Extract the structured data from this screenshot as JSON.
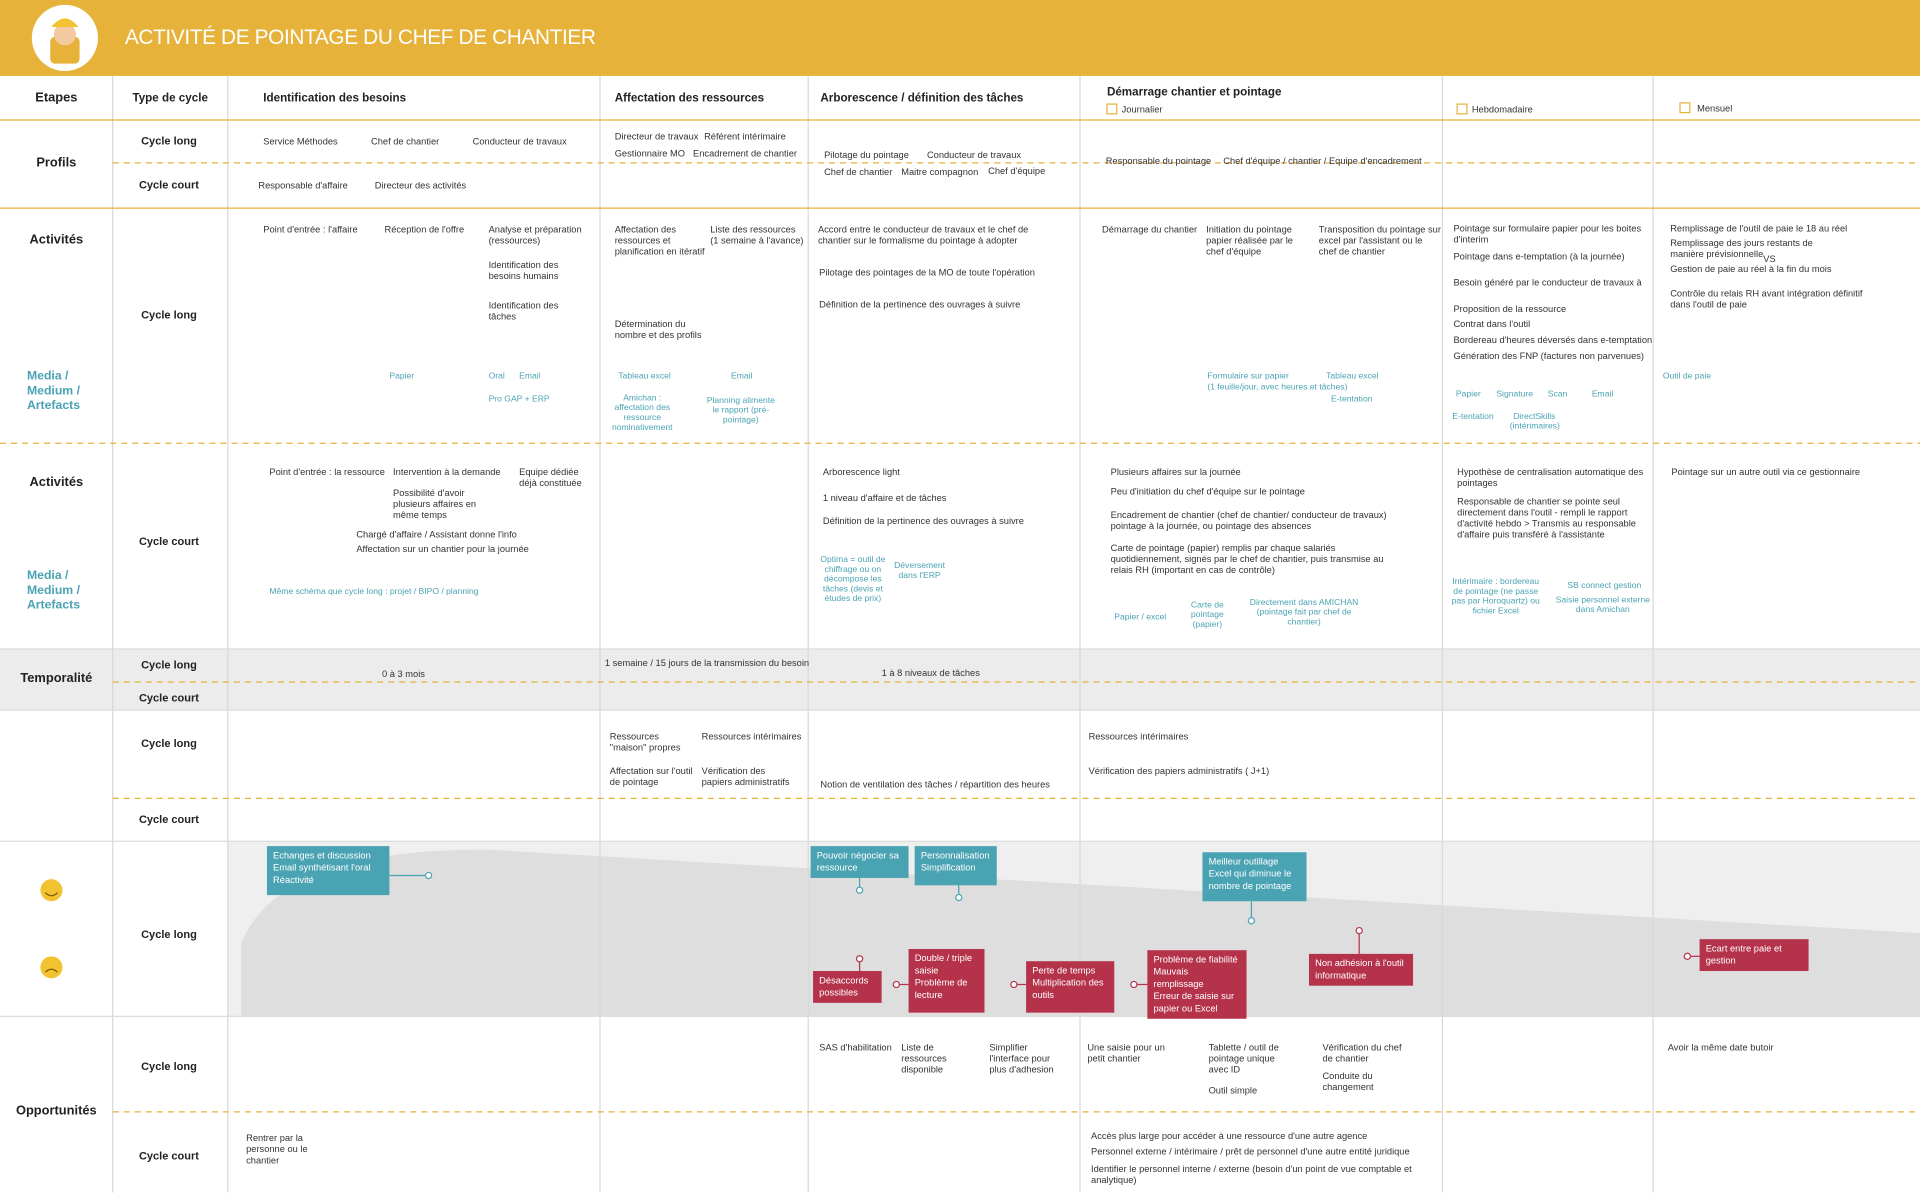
{
  "header": {
    "title": "ACTIVITÉ DE POINTAGE DU CHEF DE CHANTIER"
  },
  "columns": {
    "etapes": "Etapes",
    "type_cycle": "Type de cycle",
    "phases": [
      "Identification des besoins",
      "Affectation des ressources",
      "Arborescence / définition des tâches",
      "Démarrage chantier et pointage"
    ],
    "frequencies": [
      "Journalier",
      "Hebdomadaire",
      "Mensuel"
    ]
  },
  "row_labels": [
    "Profils",
    "Activités",
    "Media / Medium / Artefacts",
    "Activités",
    "Media / Medium / Artefacts",
    "Temporalité",
    "Opportunités"
  ],
  "cycle_labels": [
    "Cycle long",
    "Cycle court",
    "Cycle long",
    "Cycle court",
    "Cycle long",
    "Cycle court",
    "Cycle long",
    "Cycle court",
    "Cycle long",
    "Cycle long",
    "Cycle court"
  ],
  "notes": {
    "profils": [
      "Service Méthodes",
      "Chef de chantier",
      "Conducteur de travaux",
      "Directeur de travaux",
      "Référent intérimaire",
      "Gestionnaire MO",
      "Encadrement de chantier",
      "Pilotage du pointage",
      "Conducteur de travaux",
      "Chef de chantier",
      "Maitre compagnon",
      "Chef d'équipe",
      "Responsable du pointage",
      "Chef d'équipe / chantier / Equipe d'encadrement",
      "Responsable d'affaire",
      "Directeur des activités"
    ],
    "activites_long": [
      "Point d'entrée : l'affaire",
      "Réception de l'offre",
      "Analyse et préparation (ressources)",
      "Identification des besoins humains",
      "Identification des tâches",
      "Affectation des ressources et planification en itératif",
      "Liste des ressources (1 semaine à l'avance)",
      "Détermination du nombre et des profils",
      "Accord entre le conducteur de travaux et le chef de chantier sur le formalisme du pointage à adopter",
      "Pilotage des pointages de la MO de toute l'opération",
      "Définition de la pertinence des ouvrages à suivre",
      "Démarrage du chantier",
      "Initiation du pointage papier réalisée par le chef d'équipe",
      "Transposition du pointage sur excel par l'assistant ou le chef de chantier",
      "Pointage sur formulaire papier pour les boites d'interim",
      "Pointage dans e-temptation (à la journée)",
      "Besoin généré par le conducteur de travaux à",
      "Proposition de la ressource",
      "Contrat dans l'outil",
      "Bordereau d'heures déversés dans e-temptation",
      "Génération des FNP (factures non parvenues)",
      "Remplissage de l'outil de paie le 18 au réel",
      "Remplissage des jours restants de manière prévisionnelle",
      "VS",
      "Gestion de paie au réel à la fin du mois",
      "Contrôle du relais RH avant intégration définitif dans l'outil de paie"
    ],
    "media_long": [
      "Papier",
      "Oral",
      "Email",
      "Pro GAP + ERP",
      "Tableau excel",
      "Email",
      "Amichan : affectation des ressource nominativement",
      "Planning alimente le rapport (pré-pointage)",
      "Formulaire sur papier",
      "(1 feuille/jour, avec heures et tâches)",
      "Tableau excel",
      "E-tentation",
      "Papier",
      "Signature",
      "Scan",
      "Email",
      "E-tentation",
      "DirectSkills (intérimaires)",
      "Outil de paie"
    ],
    "activites_court": [
      "Point d'entrée : la ressource",
      "Intervention à la demande",
      "Equipe dédiée déjà constituée",
      "Possibilité d'avoir plusieurs affaires en même temps",
      "Chargé d'affaire / Assistant donne l'info",
      "Affectation sur un chantier pour la journée",
      "Arborescence light",
      "1  niveau d'affaire et de tâches",
      "Définition de la pertinence des ouvrages à suivre",
      "Plusieurs affaires sur la journée",
      "Peu d'initiation du chef d'équipe sur le pointage",
      "Encadrement de chantier (chef de chantier/ conducteur de travaux) pointage à la journée, ou pointage des absences",
      "Carte de pointage (papier) remplis par chaque salariés quotidiennement, signés par le chef de chantier, puis transmise au relais RH (important en cas de contrôle)",
      "Hypothèse de centralisation automatique des pointages",
      "Responsable de chantier se pointe seul directement dans l'outil - rempli le rapport d'activité hebdo > Transmis au responsable d'affaire puis transféré à l'assistante",
      "Pointage sur un autre outil via ce gestionnaire"
    ],
    "media_court": [
      "Même schéma que cycle long : projet / BIPO / planning",
      "Optima = outil de chiffrage ou on décompose les tâches (devis et études de prix)",
      "Déversement dans l'ERP",
      "Papier / excel",
      "Carte de pointage (papier)",
      "Directement dans AMICHAN (pointage fait par chef de chantier)",
      "Intérimaire : bordereau de pointage (ne passe pas par Horoquartz) ou fichier Excel",
      "SB connect gestion",
      "Saisie personnel externe dans Amichan"
    ],
    "temporalite": [
      "0 à 3 mois",
      "1 semaine / 15 jours de la transmission du besoin",
      "1 à 8 niveaux de tâches"
    ],
    "ressources": [
      "Ressources \"maison\" propres",
      "Ressources intérimaires",
      "Affectation sur l'outil de pointage",
      "Vérification des papiers administratifs",
      "Notion de ventilation des tâches / répartition des heures",
      "Ressources intérimaires",
      "Vérification des papiers administratifs ( J+1)"
    ],
    "opportunites": [
      "SAS d'habilitation",
      "Liste de ressources disponible",
      "Simplifier l'interface pour plus d'adhesion",
      "Une saisie pour un petit chantier",
      "Tablette / outil de pointage unique avec ID",
      "Outil simple",
      "Vérification du chef de chantier",
      "Conduite du changement",
      "Avoir la même date butoir",
      "Rentrer par la personne ou le chantier",
      "Accès plus large pour accéder à une ressource d'une autre agence",
      "Personnel externe / intérimaire / prêt de personnel d'une autre entité juridique",
      "Identifier le personnel interne / externe (besoin d'un point de vue comptable et analytique)"
    ]
  },
  "emotions": {
    "positives": [
      [
        "Echanges et discussion",
        "Email synthétisant l'oral",
        "Réactivité"
      ],
      [
        "Pouvoir négocier sa ressource"
      ],
      [
        "Personnalisation",
        "Simplification"
      ],
      [
        "Meilleur outillage Excel qui diminue le nombre de pointage"
      ]
    ],
    "negatives": [
      [
        "Désaccords possibles"
      ],
      [
        "Double / triple saisie",
        "Problème de lecture"
      ],
      [
        "Perte de temps",
        "Multiplication des outils"
      ],
      [
        "Problème de fiabilité",
        "Mauvais remplissage",
        "Erreur de saisie sur papier ou Excel"
      ],
      [
        "Non adhésion à l'outil informatique"
      ],
      [
        "Ecart entre paie et gestion"
      ]
    ]
  }
}
